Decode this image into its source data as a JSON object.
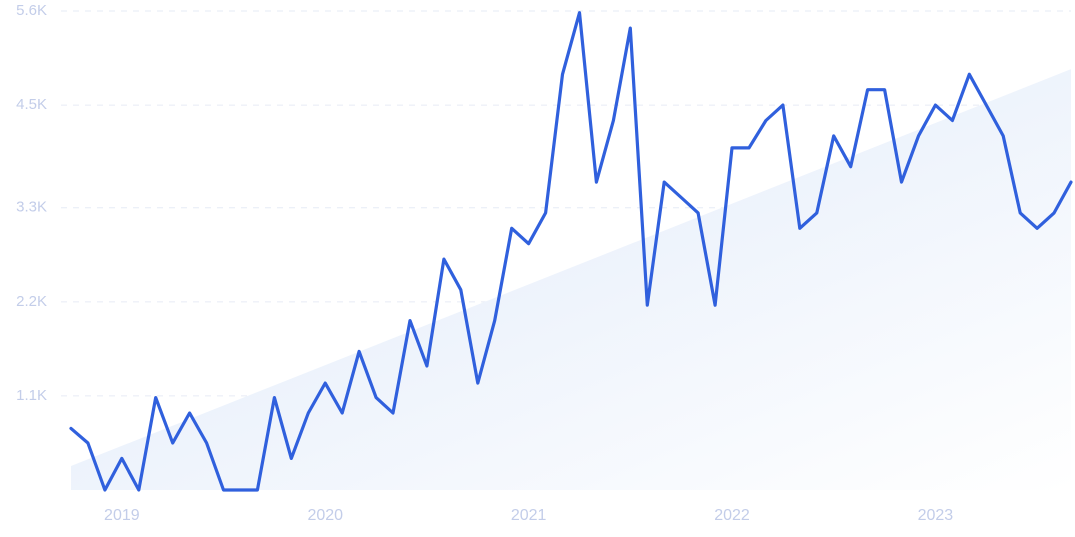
{
  "chart_data": {
    "type": "line",
    "title": "",
    "xlabel": "",
    "ylabel": "",
    "ylim": [
      0,
      5600
    ],
    "y_ticks": [
      {
        "value": 1100,
        "label": "1.1K"
      },
      {
        "value": 2200,
        "label": "2.2K"
      },
      {
        "value": 3300,
        "label": "3.3K"
      },
      {
        "value": 4500,
        "label": "4.5K"
      },
      {
        "value": 5600,
        "label": "5.6K"
      }
    ],
    "x_range": [
      "2018-10",
      "2023-09"
    ],
    "x_ticks": [
      {
        "date": "2019-01",
        "label": "2019"
      },
      {
        "date": "2020-01",
        "label": "2020"
      },
      {
        "date": "2021-01",
        "label": "2021"
      },
      {
        "date": "2022-01",
        "label": "2022"
      },
      {
        "date": "2023-01",
        "label": "2023"
      }
    ],
    "grid": true,
    "trend": {
      "start": 280,
      "end": 4920
    },
    "series": [
      {
        "name": "",
        "x": [
          "2018-10",
          "2018-11",
          "2018-12",
          "2019-01",
          "2019-02",
          "2019-03",
          "2019-04",
          "2019-05",
          "2019-06",
          "2019-07",
          "2019-08",
          "2019-09",
          "2019-10",
          "2019-11",
          "2019-12",
          "2020-01",
          "2020-02",
          "2020-03",
          "2020-04",
          "2020-05",
          "2020-06",
          "2020-07",
          "2020-08",
          "2020-09",
          "2020-10",
          "2020-11",
          "2020-12",
          "2021-01",
          "2021-02",
          "2021-03",
          "2021-04",
          "2021-05",
          "2021-06",
          "2021-07",
          "2021-08",
          "2021-09",
          "2021-10",
          "2021-11",
          "2021-12",
          "2022-01",
          "2022-02",
          "2022-03",
          "2022-04",
          "2022-05",
          "2022-06",
          "2022-07",
          "2022-08",
          "2022-09",
          "2022-10",
          "2022-11",
          "2022-12",
          "2023-01",
          "2023-02",
          "2023-03",
          "2023-04",
          "2023-05",
          "2023-06",
          "2023-07",
          "2023-08",
          "2023-09"
        ],
        "values": [
          720,
          550,
          0,
          370,
          0,
          1080,
          550,
          900,
          550,
          0,
          0,
          0,
          1080,
          370,
          900,
          1250,
          900,
          1620,
          1080,
          900,
          1980,
          1450,
          2700,
          2340,
          1250,
          1980,
          3060,
          2880,
          3240,
          4860,
          5580,
          3600,
          4320,
          5400,
          2160,
          3600,
          3420,
          3240,
          2160,
          4000,
          4000,
          4320,
          4500,
          3060,
          3240,
          4140,
          3780,
          4680,
          4680,
          3600,
          4140,
          4500,
          4320,
          4860,
          4500,
          4140,
          3240,
          3060,
          3240,
          3600
        ]
      }
    ],
    "colors": {
      "line": "#3060dd",
      "fill_top": "#dde8f9",
      "fill_bottom": "#ffffff",
      "tick": "#c3cde9",
      "grid": "#e6ebf5"
    }
  }
}
